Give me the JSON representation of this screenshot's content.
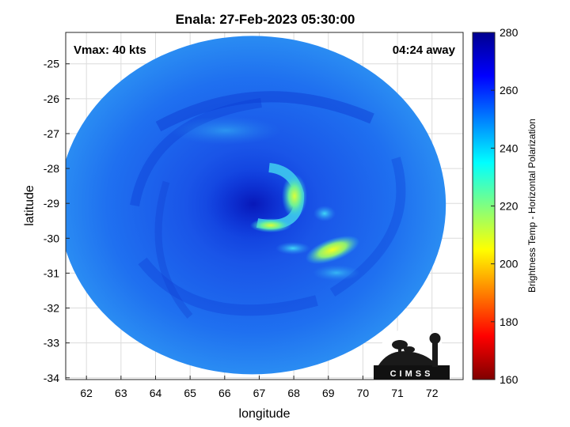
{
  "title": "Enala: 27-Feb-2023 05:30:00",
  "vmax_label": "Vmax: 40 kts",
  "away_label": "04:24 away",
  "logo_text": "CIMSS",
  "map": {
    "xlabel": "longitude",
    "ylabel": "latitude",
    "xlim": [
      61.4,
      72.9
    ],
    "ylim": [
      -34.05,
      -24.1
    ],
    "xticks": [
      "62",
      "63",
      "64",
      "65",
      "66",
      "67",
      "68",
      "69",
      "70",
      "71",
      "72"
    ],
    "yticks": [
      "-25",
      "-26",
      "-27",
      "-28",
      "-29",
      "-30",
      "-31",
      "-32",
      "-33",
      "-34"
    ],
    "grid": true,
    "center": {
      "lon": 66.8,
      "lat": -29.05
    },
    "radius_deg_lon": 5.6,
    "radius_deg_lat": 4.85
  },
  "colorbar": {
    "label": "Brightness Temp - Horizontal Polarization",
    "min": 160,
    "max": 280,
    "ticks": [
      "160",
      "180",
      "200",
      "220",
      "240",
      "260",
      "280"
    ],
    "colors": [
      "#7f0000",
      "#ff0000",
      "#ff8000",
      "#ffff00",
      "#80ff80",
      "#00ffff",
      "#0080ff",
      "#0000ff",
      "#00008f"
    ]
  }
}
